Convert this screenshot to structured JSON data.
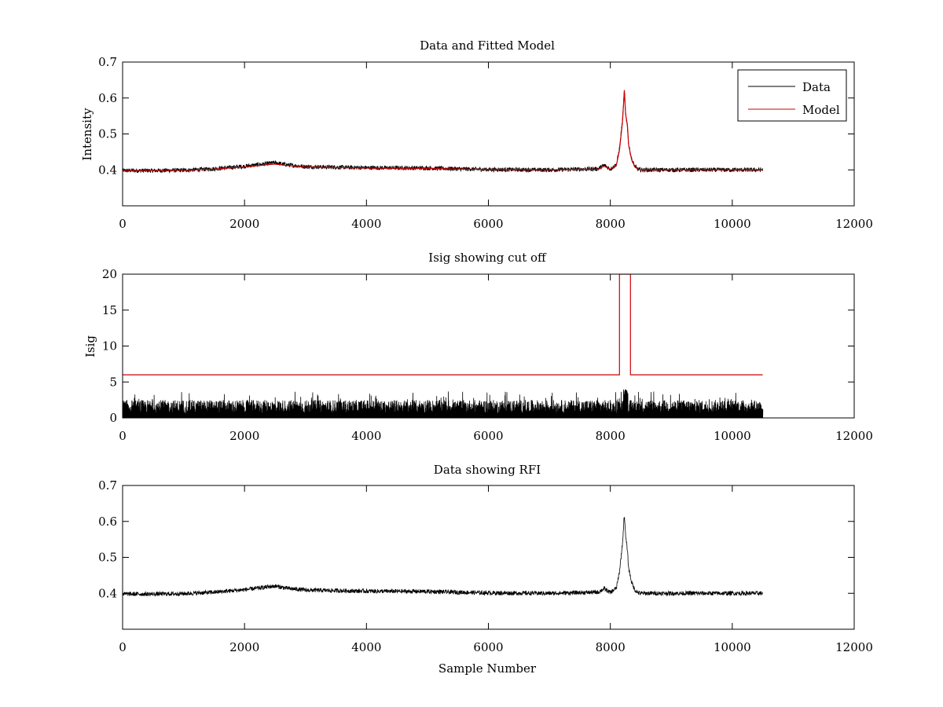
{
  "chart_data": [
    {
      "type": "line",
      "title": "Data and Fitted Model",
      "xlabel": "",
      "ylabel": "Intensity",
      "xlim": [
        0,
        12000
      ],
      "ylim": [
        0.3,
        0.7
      ],
      "xticks": [
        0,
        2000,
        4000,
        6000,
        8000,
        10000,
        12000
      ],
      "xtick_labels": [
        "0",
        "2000",
        "4000",
        "6000",
        "8000",
        "10000",
        "12000"
      ],
      "yticks": [
        0.4,
        0.5,
        0.6,
        0.7
      ],
      "ytick_labels": [
        "0.4",
        "0.5",
        "0.6",
        "0.7"
      ],
      "legend": {
        "position": "top-right",
        "entries": [
          "Data",
          "Model"
        ]
      },
      "series": [
        {
          "name": "Data",
          "color": "#000000",
          "noise": 0.006,
          "x": [
            0,
            500,
            1000,
            1500,
            2000,
            2300,
            2500,
            2700,
            3000,
            4000,
            5000,
            6000,
            7000,
            7800,
            7900,
            8000,
            8100,
            8150,
            8200,
            8230,
            8250,
            8280,
            8300,
            8350,
            8400,
            8450,
            8500,
            9000,
            10000,
            10500
          ],
          "values": [
            0.398,
            0.398,
            0.399,
            0.403,
            0.41,
            0.416,
            0.42,
            0.414,
            0.409,
            0.406,
            0.405,
            0.401,
            0.4,
            0.403,
            0.413,
            0.402,
            0.415,
            0.46,
            0.54,
            0.62,
            0.56,
            0.52,
            0.47,
            0.43,
            0.41,
            0.402,
            0.4,
            0.4,
            0.4,
            0.4
          ]
        },
        {
          "name": "Model",
          "color": "#cc0000",
          "noise": 0.0,
          "x": [
            0,
            500,
            1000,
            1500,
            2000,
            2300,
            2500,
            2700,
            3000,
            4000,
            5000,
            6000,
            7000,
            7800,
            7900,
            8000,
            8100,
            8150,
            8200,
            8230,
            8250,
            8280,
            8300,
            8350,
            8400,
            8450,
            8500,
            9000,
            10000,
            10500
          ],
          "values": [
            0.398,
            0.398,
            0.399,
            0.402,
            0.408,
            0.413,
            0.416,
            0.412,
            0.408,
            0.405,
            0.404,
            0.401,
            0.4,
            0.402,
            0.41,
            0.402,
            0.413,
            0.455,
            0.535,
            0.622,
            0.555,
            0.525,
            0.47,
            0.428,
            0.409,
            0.402,
            0.4,
            0.4,
            0.4,
            0.4
          ]
        }
      ]
    },
    {
      "type": "line",
      "title": "Isig showing cut off",
      "xlabel": "",
      "ylabel": "Isig",
      "xlim": [
        0,
        12000
      ],
      "ylim": [
        0,
        20
      ],
      "xticks": [
        0,
        2000,
        4000,
        6000,
        8000,
        10000,
        12000
      ],
      "xtick_labels": [
        "0",
        "2000",
        "4000",
        "6000",
        "8000",
        "10000",
        "12000"
      ],
      "yticks": [
        0,
        5,
        10,
        15,
        20
      ],
      "ytick_labels": [
        "0",
        "5",
        "10",
        "15",
        "20"
      ],
      "series": [
        {
          "name": "Isig",
          "color": "#000000",
          "kind": "noise_band",
          "x_range": [
            0,
            10500
          ],
          "typical_max": 2.5,
          "peak_max": 4.0,
          "peak_x": 8250
        },
        {
          "name": "Cut off",
          "color": "#cc0000",
          "x": [
            0,
            8150,
            8150,
            8330,
            8330,
            10500
          ],
          "values": [
            6,
            6,
            20,
            20,
            6,
            6
          ]
        }
      ]
    },
    {
      "type": "line",
      "title": "Data showing RFI",
      "xlabel": "Sample Number",
      "ylabel": "",
      "xlim": [
        0,
        12000
      ],
      "ylim": [
        0.3,
        0.7
      ],
      "xticks": [
        0,
        2000,
        4000,
        6000,
        8000,
        10000,
        12000
      ],
      "xtick_labels": [
        "0",
        "2000",
        "4000",
        "6000",
        "8000",
        "10000",
        "12000"
      ],
      "yticks": [
        0.4,
        0.5,
        0.6,
        0.7
      ],
      "ytick_labels": [
        "0.4",
        "0.5",
        "0.6",
        "0.7"
      ],
      "series": [
        {
          "name": "Data",
          "color": "#000000",
          "noise": 0.006,
          "x": [
            0,
            500,
            1000,
            1500,
            2000,
            2300,
            2500,
            2700,
            3000,
            4000,
            5000,
            6000,
            7000,
            7800,
            7900,
            8000,
            8100,
            8150,
            8200,
            8230,
            8250,
            8280,
            8300,
            8350,
            8400,
            8450,
            8500,
            9000,
            10000,
            10500
          ],
          "values": [
            0.398,
            0.398,
            0.399,
            0.403,
            0.41,
            0.416,
            0.42,
            0.414,
            0.409,
            0.406,
            0.405,
            0.401,
            0.4,
            0.403,
            0.413,
            0.402,
            0.415,
            0.46,
            0.54,
            0.62,
            0.56,
            0.52,
            0.47,
            0.43,
            0.41,
            0.402,
            0.4,
            0.4,
            0.4,
            0.4
          ]
        }
      ]
    }
  ]
}
